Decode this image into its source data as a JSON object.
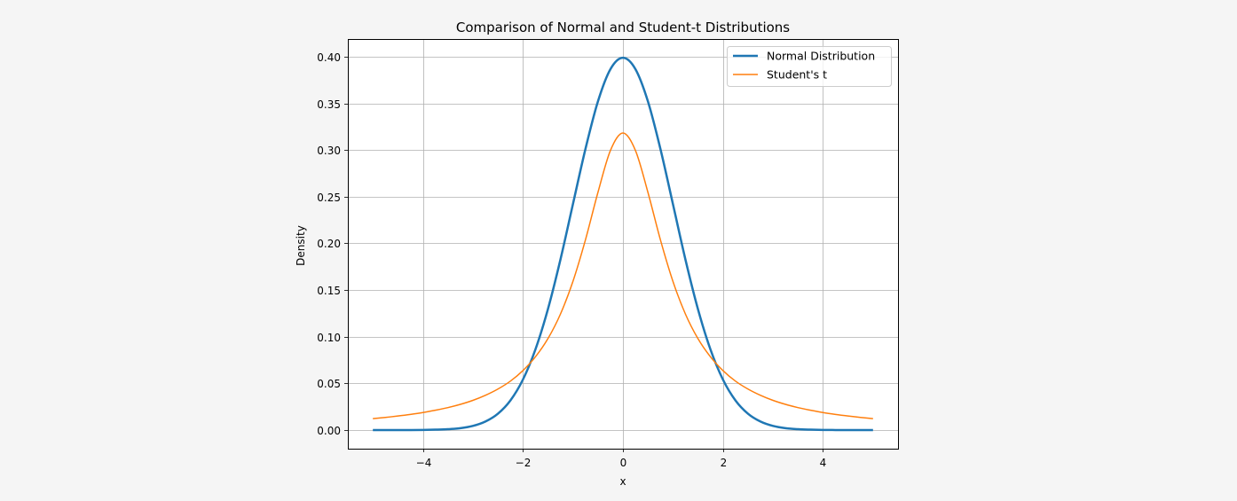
{
  "chart_data": {
    "type": "line",
    "title": "Comparison of Normal and Student-t Distributions",
    "xlabel": "x",
    "ylabel": "Density",
    "xlim": [
      -5.5,
      5.5
    ],
    "ylim": [
      -0.02,
      0.419
    ],
    "grid": true,
    "legend_position": "upper right",
    "xticks": [
      -4,
      -2,
      0,
      2,
      4
    ],
    "xtick_labels": [
      "−4",
      "−2",
      "0",
      "2",
      "4"
    ],
    "yticks": [
      0.0,
      0.05,
      0.1,
      0.15,
      0.2,
      0.25,
      0.3,
      0.35,
      0.4
    ],
    "ytick_labels": [
      "0.00",
      "0.05",
      "0.10",
      "0.15",
      "0.20",
      "0.25",
      "0.30",
      "0.35",
      "0.40"
    ],
    "x": [
      -5,
      -4.75,
      -4.5,
      -4.25,
      -4,
      -3.75,
      -3.5,
      -3.25,
      -3,
      -2.75,
      -2.5,
      -2.25,
      -2,
      -1.75,
      -1.5,
      -1.25,
      -1,
      -0.75,
      -0.5,
      -0.25,
      0,
      0.25,
      0.5,
      0.75,
      1,
      1.25,
      1.5,
      1.75,
      2,
      2.25,
      2.5,
      2.75,
      3,
      3.25,
      3.5,
      3.75,
      4,
      4.25,
      4.5,
      4.75,
      5
    ],
    "series": [
      {
        "name": "Normal Distribution",
        "color": "#1f77b4",
        "linewidth": 2.5,
        "values": [
          0.0,
          0.0,
          0.0,
          0.0,
          0.0001,
          0.0004,
          0.0009,
          0.002,
          0.0044,
          0.0091,
          0.0175,
          0.0317,
          0.054,
          0.0863,
          0.1295,
          0.1826,
          0.242,
          0.3011,
          0.3521,
          0.3867,
          0.3989,
          0.3867,
          0.3521,
          0.3011,
          0.242,
          0.1826,
          0.1295,
          0.0863,
          0.054,
          0.0317,
          0.0175,
          0.0091,
          0.0044,
          0.002,
          0.0009,
          0.0004,
          0.0001,
          0.0,
          0.0,
          0.0,
          0.0
        ]
      },
      {
        "name": "Student's t",
        "color": "#ff7f0e",
        "linewidth": 1.5,
        "values": [
          0.0122,
          0.0135,
          0.015,
          0.0167,
          0.0187,
          0.0212,
          0.024,
          0.0275,
          0.0318,
          0.0372,
          0.0439,
          0.0524,
          0.0637,
          0.0784,
          0.0979,
          0.1242,
          0.1592,
          0.2037,
          0.2546,
          0.2996,
          0.3183,
          0.2996,
          0.2546,
          0.2037,
          0.1592,
          0.1242,
          0.0979,
          0.0784,
          0.0637,
          0.0524,
          0.0439,
          0.0372,
          0.0318,
          0.0275,
          0.024,
          0.0212,
          0.0187,
          0.0167,
          0.015,
          0.0135,
          0.0122
        ]
      }
    ]
  },
  "colors": {
    "figure_background": "#f5f5f5",
    "axes_background": "#ffffff",
    "grid": "#b0b0b0"
  }
}
